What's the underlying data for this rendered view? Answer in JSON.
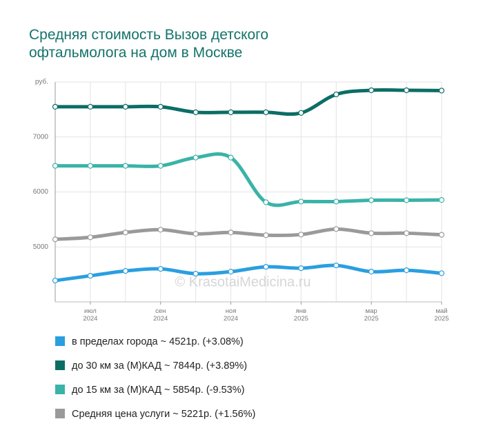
{
  "chart_data": {
    "type": "line",
    "title": "Средняя стоимость Вызов детского офтальмолога на дом в Москве",
    "watermark": "© KrasotaiMedicina.ru",
    "categories": [
      null,
      "июл\n2024",
      null,
      "сен\n2024",
      null,
      "ноя\n2024",
      null,
      "янв\n2025",
      null,
      "мар\n2025",
      null,
      "май\n2025"
    ],
    "ylim": [
      4000,
      8000
    ],
    "yticks": [
      {
        "value": 8000,
        "label": "руб."
      },
      7000,
      6000,
      5000
    ],
    "grid": true,
    "series": [
      {
        "name": "в пределах города ~ 4521р. (+3.08%)",
        "color": "#2a9fe0",
        "values": [
          4388,
          4475,
          4563,
          4600,
          4513,
          4550,
          4638,
          4613,
          4663,
          4550,
          4575,
          4521
        ]
      },
      {
        "name": "до 30 км за (М)КАД ~ 7844р. (+3.89%)",
        "color": "#0b6e65",
        "values": [
          7550,
          7550,
          7550,
          7550,
          7450,
          7450,
          7450,
          7438,
          7775,
          7850,
          7850,
          7844
        ]
      },
      {
        "name": "до 15 км за (М)КАД ~ 5854р. (-9.53%)",
        "color": "#3ab3a8",
        "values": [
          6475,
          6475,
          6475,
          6475,
          6625,
          6625,
          5813,
          5825,
          5825,
          5850,
          5850,
          5854
        ]
      },
      {
        "name": "Средняя цена услуги ~ 5221р. (+1.56%)",
        "color": "#9a9a9a",
        "values": [
          5138,
          5175,
          5263,
          5313,
          5238,
          5263,
          5213,
          5225,
          5325,
          5250,
          5250,
          5221
        ]
      }
    ]
  }
}
